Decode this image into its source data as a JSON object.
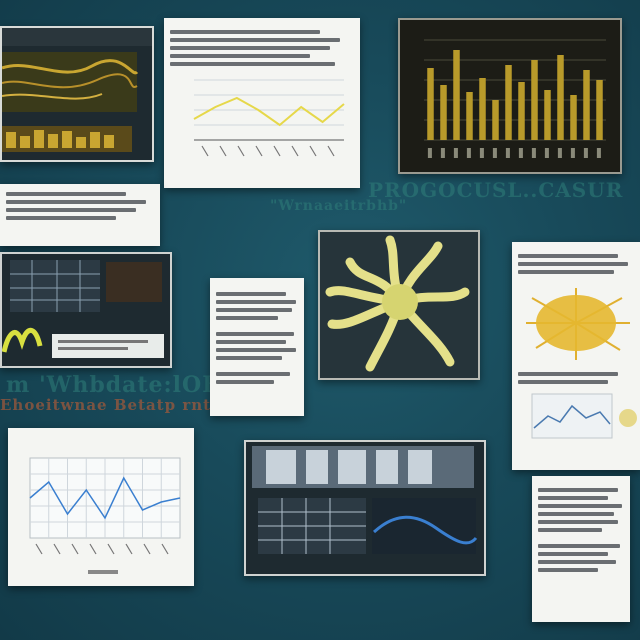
{
  "background_text": [
    "\"Wrnaaeitrbhb\"",
    "\"Wrnaeitrbhb\"",
    "PROGOCUSL..CASUR",
    "m 'Whbdate:lOB",
    "Ehoeitwnae Betatp rntt"
  ],
  "colors": {
    "background": "#184a5a",
    "chart_gold": "#b89a2a",
    "line_yellow": "#e6d84a",
    "line_blue": "#3a7fd0",
    "paper": "#f4f5f2"
  },
  "cards": {
    "gold_chart": {
      "bars": [
        0.72,
        0.55,
        0.9,
        0.48,
        0.62,
        0.4,
        0.75,
        0.58,
        0.8,
        0.5,
        0.85,
        0.45,
        0.7,
        0.6
      ]
    },
    "yellow_line_chart": {
      "points": [
        0.35,
        0.55,
        0.7,
        0.5,
        0.25,
        0.55,
        0.3,
        0.6
      ]
    },
    "blue_line_chart": {
      "points": [
        0.5,
        0.7,
        0.3,
        0.6,
        0.25,
        0.75,
        0.35,
        0.45,
        0.5
      ]
    }
  }
}
